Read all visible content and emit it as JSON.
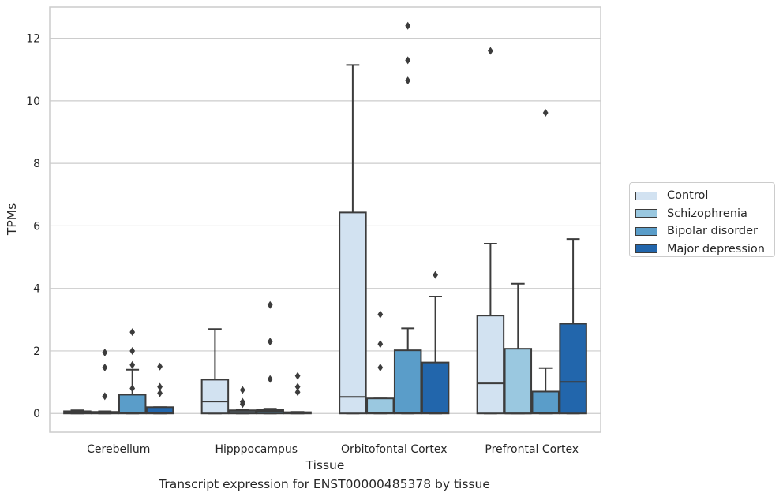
{
  "chart_data": {
    "type": "box",
    "xlabel": "Tissue",
    "ylabel": "TPMs",
    "caption": "Transcript expression for ENST00000485378 by tissue",
    "ylim": [
      -0.6,
      13.0
    ],
    "yticks": [
      0,
      2,
      4,
      6,
      8,
      10,
      12
    ],
    "grid": "horizontal",
    "legend_position": "right",
    "categories": [
      "Cerebellum",
      "Hipppocampus",
      "Orbitofontal Cortex",
      "Prefrontal Cortex"
    ],
    "series": [
      {
        "name": "Control",
        "color": "#d2e2f1",
        "boxes": [
          {
            "q1": 0,
            "median": 0.03,
            "q3": 0.07,
            "whisker_low": 0,
            "whisker_high": 0.1,
            "outliers": []
          },
          {
            "q1": 0,
            "median": 0.38,
            "q3": 1.08,
            "whisker_low": 0,
            "whisker_high": 2.7,
            "outliers": []
          },
          {
            "q1": 0,
            "median": 0.53,
            "q3": 6.43,
            "whisker_low": 0,
            "whisker_high": 11.15,
            "outliers": []
          },
          {
            "q1": 0,
            "median": 0.96,
            "q3": 3.13,
            "whisker_low": 0,
            "whisker_high": 5.43,
            "outliers": [
              11.6
            ]
          }
        ]
      },
      {
        "name": "Schizophrenia",
        "color": "#9ac8e0",
        "boxes": [
          {
            "q1": 0,
            "median": 0.02,
            "q3": 0.05,
            "whisker_low": 0,
            "whisker_high": 0.07,
            "outliers": [
              0.55,
              1.47,
              1.95
            ]
          },
          {
            "q1": 0,
            "median": 0.05,
            "q3": 0.1,
            "whisker_low": 0,
            "whisker_high": 0.12,
            "outliers": [
              0.3,
              0.37,
              0.75
            ]
          },
          {
            "q1": 0,
            "median": 0.03,
            "q3": 0.48,
            "whisker_low": 0,
            "whisker_high": 0.48,
            "outliers": [
              1.47,
              2.22,
              3.17
            ]
          },
          {
            "q1": 0,
            "median": 0,
            "q3": 2.07,
            "whisker_low": 0,
            "whisker_high": 4.15,
            "outliers": []
          }
        ]
      },
      {
        "name": "Bipolar disorder",
        "color": "#5a9dc9",
        "boxes": [
          {
            "q1": 0,
            "median": 0.03,
            "q3": 0.6,
            "whisker_low": 0,
            "whisker_high": 1.4,
            "outliers": [
              0.8,
              1.55,
              2.0,
              2.6
            ]
          },
          {
            "q1": 0,
            "median": 0.08,
            "q3": 0.13,
            "whisker_low": 0,
            "whisker_high": 0.15,
            "outliers": [
              1.1,
              2.3,
              3.47
            ]
          },
          {
            "q1": 0,
            "median": 0.03,
            "q3": 2.02,
            "whisker_low": 0,
            "whisker_high": 2.72,
            "outliers": [
              10.65,
              11.3,
              12.4
            ]
          },
          {
            "q1": 0,
            "median": 0.03,
            "q3": 0.7,
            "whisker_low": 0,
            "whisker_high": 1.45,
            "outliers": [
              9.62
            ]
          }
        ]
      },
      {
        "name": "Major depression",
        "color": "#2266ac",
        "boxes": [
          {
            "q1": 0,
            "median": 0.02,
            "q3": 0.2,
            "whisker_low": 0,
            "whisker_high": 0.2,
            "outliers": [
              0.65,
              0.85,
              1.5
            ]
          },
          {
            "q1": 0,
            "median": 0.02,
            "q3": 0.04,
            "whisker_low": 0,
            "whisker_high": 0.05,
            "outliers": [
              0.68,
              0.85,
              1.2
            ]
          },
          {
            "q1": 0,
            "median": 0.03,
            "q3": 1.63,
            "whisker_low": 0,
            "whisker_high": 3.74,
            "outliers": [
              4.43
            ]
          },
          {
            "q1": 0,
            "median": 1.01,
            "q3": 2.87,
            "whisker_low": 0,
            "whisker_high": 5.58,
            "outliers": []
          }
        ]
      }
    ]
  }
}
